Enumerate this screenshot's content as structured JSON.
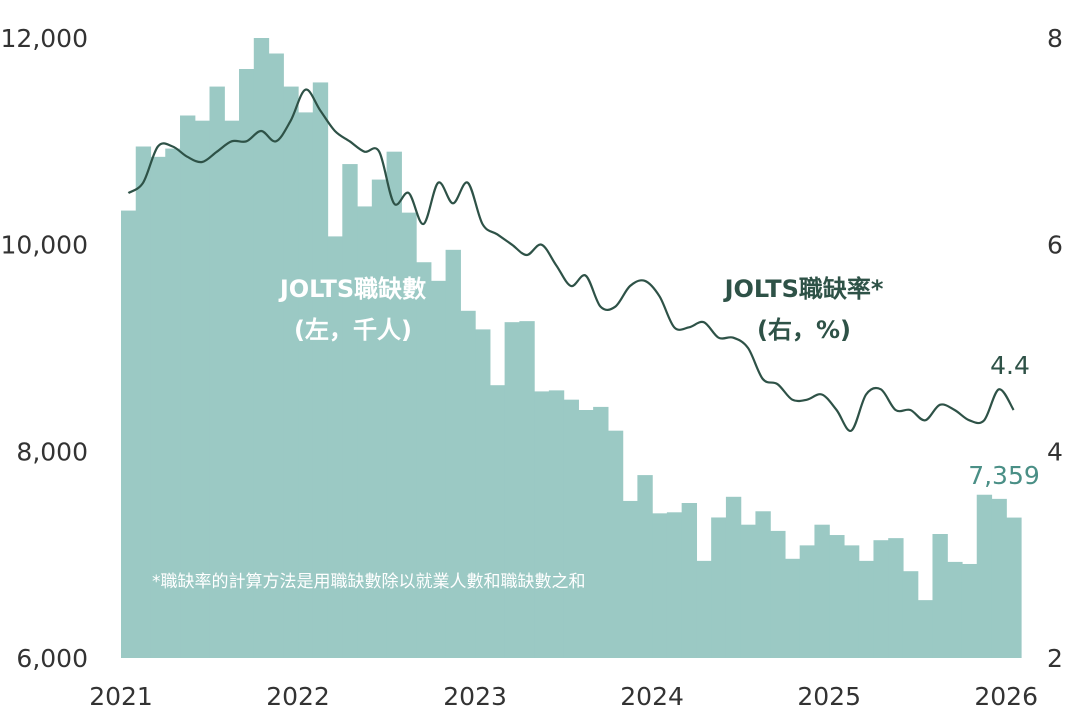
{
  "colors": {
    "bars": "#9bc9c4",
    "line": "#2e5247",
    "last_bar_label": "#4a8f86",
    "text": "#333333"
  },
  "chart_data": {
    "type": "bar",
    "left_axis": {
      "ticks": [
        "6,000",
        "8,000",
        "10,000",
        "12,000"
      ],
      "ylim": [
        6000,
        12000
      ]
    },
    "right_axis": {
      "ticks": [
        "2",
        "4",
        "6",
        "8"
      ],
      "ylim": [
        2,
        8
      ]
    },
    "x_ticks": [
      "2021",
      "2022",
      "2023",
      "2024",
      "2025",
      "2026"
    ],
    "series": [
      {
        "name": "JOLTS職缺數",
        "sublabel": "(左，千人)",
        "type": "bar",
        "values": [
          10330,
          10950,
          10850,
          10930,
          11250,
          11200,
          11530,
          11200,
          11700,
          12000,
          11850,
          11530,
          11280,
          11570,
          10080,
          10780,
          10370,
          10630,
          10900,
          10310,
          9830,
          9650,
          9950,
          9360,
          9180,
          8640,
          9250,
          9260,
          8580,
          8590,
          8500,
          8400,
          8430,
          8200,
          7520,
          7770,
          7400,
          7410,
          7500,
          6940,
          7360,
          7560,
          7290,
          7420,
          7230,
          6960,
          7090,
          7290,
          7190,
          7090,
          6940,
          7140,
          7160,
          6840,
          6560,
          7200,
          6930,
          6910,
          7580,
          7540,
          7359
        ],
        "last_label": "7,359"
      },
      {
        "name": "JOLTS職缺率*",
        "sublabel": "(右，%)",
        "type": "line",
        "values": [
          6.5,
          6.6,
          6.95,
          6.95,
          6.85,
          6.8,
          6.9,
          7.0,
          7.0,
          7.1,
          7.0,
          7.2,
          7.5,
          7.3,
          7.1,
          7.0,
          6.9,
          6.9,
          6.4,
          6.5,
          6.2,
          6.6,
          6.4,
          6.6,
          6.2,
          6.1,
          6.0,
          5.9,
          6.0,
          5.8,
          5.6,
          5.7,
          5.4,
          5.4,
          5.6,
          5.65,
          5.5,
          5.2,
          5.2,
          5.25,
          5.1,
          5.1,
          5.0,
          4.7,
          4.65,
          4.5,
          4.5,
          4.55,
          4.4,
          4.2,
          4.55,
          4.6,
          4.4,
          4.4,
          4.3,
          4.45,
          4.4,
          4.3,
          4.3,
          4.6,
          4.4
        ],
        "last_label": "4.4"
      }
    ],
    "footnote": "*職缺率的計算方法是用職缺數除以就業人數和職缺數之和"
  }
}
